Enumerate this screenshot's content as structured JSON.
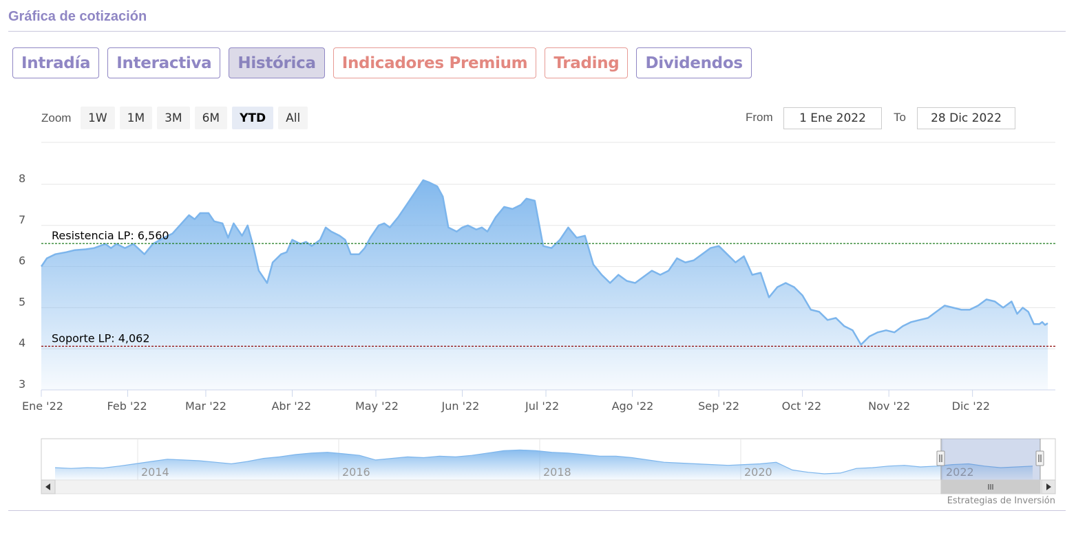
{
  "header": {
    "title": "Gráfica de cotización"
  },
  "tabs": [
    {
      "label": "Intradía",
      "style": "normal"
    },
    {
      "label": "Interactiva",
      "style": "normal"
    },
    {
      "label": "Histórica",
      "style": "active"
    },
    {
      "label": "Indicadores Premium",
      "style": "premium"
    },
    {
      "label": "Trading",
      "style": "premium"
    },
    {
      "label": "Dividendos",
      "style": "normal"
    }
  ],
  "range_selector": {
    "zoom_label": "Zoom",
    "buttons": [
      "1W",
      "1M",
      "3M",
      "6M",
      "YTD",
      "All"
    ],
    "selected": "YTD",
    "from_label": "From",
    "from_value": "1 Ene 2022",
    "to_label": "To",
    "to_value": "28 Dic 2022"
  },
  "credits": "Estrategias de Inversión",
  "colors": {
    "accent": "#8f86c4",
    "premium": "#e38880",
    "series": "#7cb5ec",
    "resistance": "#1a7a1a",
    "support": "#8b0000"
  },
  "chart_data": {
    "type": "area",
    "ylim": [
      3,
      8
    ],
    "yticks": [
      3,
      4,
      5,
      6,
      7,
      8
    ],
    "x_range": [
      "2022-01-01",
      "2022-12-28"
    ],
    "xticks": [
      {
        "date": "2022-01-01",
        "label": "Ene '22"
      },
      {
        "date": "2022-02-01",
        "label": "Feb '22"
      },
      {
        "date": "2022-03-01",
        "label": "Mar '22"
      },
      {
        "date": "2022-04-01",
        "label": "Abr '22"
      },
      {
        "date": "2022-05-01",
        "label": "May '22"
      },
      {
        "date": "2022-06-01",
        "label": "Jun '22"
      },
      {
        "date": "2022-07-01",
        "label": "Jul '22"
      },
      {
        "date": "2022-08-01",
        "label": "Ago '22"
      },
      {
        "date": "2022-09-01",
        "label": "Sep '22"
      },
      {
        "date": "2022-10-01",
        "label": "Oct '22"
      },
      {
        "date": "2022-11-01",
        "label": "Nov '22"
      },
      {
        "date": "2022-12-01",
        "label": "Dic '22"
      }
    ],
    "plot_lines": [
      {
        "label": "Resistencia LP: 6,560",
        "value": 6.56,
        "color": "#1a7a1a"
      },
      {
        "label": "Soporte LP: 4,062",
        "value": 4.062,
        "color": "#8b0000"
      }
    ],
    "series": [
      {
        "points": [
          [
            "2022-01-01",
            6.0
          ],
          [
            "2022-01-03",
            6.2
          ],
          [
            "2022-01-06",
            6.3
          ],
          [
            "2022-01-10",
            6.35
          ],
          [
            "2022-01-13",
            6.4
          ],
          [
            "2022-01-17",
            6.42
          ],
          [
            "2022-01-20",
            6.45
          ],
          [
            "2022-01-24",
            6.55
          ],
          [
            "2022-01-26",
            6.45
          ],
          [
            "2022-01-28",
            6.55
          ],
          [
            "2022-01-31",
            6.45
          ],
          [
            "2022-02-03",
            6.55
          ],
          [
            "2022-02-07",
            6.3
          ],
          [
            "2022-02-10",
            6.55
          ],
          [
            "2022-02-14",
            6.7
          ],
          [
            "2022-02-17",
            6.8
          ],
          [
            "2022-02-21",
            7.1
          ],
          [
            "2022-02-23",
            7.25
          ],
          [
            "2022-02-25",
            7.15
          ],
          [
            "2022-02-27",
            7.3
          ],
          [
            "2022-03-02",
            7.3
          ],
          [
            "2022-03-04",
            7.1
          ],
          [
            "2022-03-07",
            7.05
          ],
          [
            "2022-03-09",
            6.7
          ],
          [
            "2022-03-11",
            7.05
          ],
          [
            "2022-03-14",
            6.75
          ],
          [
            "2022-03-16",
            7.0
          ],
          [
            "2022-03-18",
            6.5
          ],
          [
            "2022-03-20",
            5.9
          ],
          [
            "2022-03-23",
            5.6
          ],
          [
            "2022-03-25",
            6.1
          ],
          [
            "2022-03-28",
            6.3
          ],
          [
            "2022-03-30",
            6.35
          ],
          [
            "2022-04-01",
            6.65
          ],
          [
            "2022-04-04",
            6.55
          ],
          [
            "2022-04-06",
            6.6
          ],
          [
            "2022-04-08",
            6.5
          ],
          [
            "2022-04-11",
            6.65
          ],
          [
            "2022-04-13",
            6.95
          ],
          [
            "2022-04-15",
            6.85
          ],
          [
            "2022-04-18",
            6.75
          ],
          [
            "2022-04-20",
            6.65
          ],
          [
            "2022-04-22",
            6.3
          ],
          [
            "2022-04-25",
            6.3
          ],
          [
            "2022-04-27",
            6.45
          ],
          [
            "2022-04-29",
            6.7
          ],
          [
            "2022-05-02",
            7.0
          ],
          [
            "2022-05-04",
            7.05
          ],
          [
            "2022-05-06",
            6.95
          ],
          [
            "2022-05-09",
            7.2
          ],
          [
            "2022-05-11",
            7.4
          ],
          [
            "2022-05-13",
            7.6
          ],
          [
            "2022-05-16",
            7.9
          ],
          [
            "2022-05-18",
            8.1
          ],
          [
            "2022-05-20",
            8.05
          ],
          [
            "2022-05-23",
            7.95
          ],
          [
            "2022-05-25",
            7.7
          ],
          [
            "2022-05-27",
            6.95
          ],
          [
            "2022-05-30",
            6.85
          ],
          [
            "2022-06-01",
            6.95
          ],
          [
            "2022-06-03",
            7.0
          ],
          [
            "2022-06-06",
            6.9
          ],
          [
            "2022-06-08",
            6.95
          ],
          [
            "2022-06-10",
            6.85
          ],
          [
            "2022-06-13",
            7.2
          ],
          [
            "2022-06-16",
            7.45
          ],
          [
            "2022-06-19",
            7.4
          ],
          [
            "2022-06-22",
            7.5
          ],
          [
            "2022-06-24",
            7.65
          ],
          [
            "2022-06-27",
            7.6
          ],
          [
            "2022-06-30",
            6.5
          ],
          [
            "2022-07-03",
            6.45
          ],
          [
            "2022-07-06",
            6.65
          ],
          [
            "2022-07-09",
            6.95
          ],
          [
            "2022-07-12",
            6.7
          ],
          [
            "2022-07-15",
            6.75
          ],
          [
            "2022-07-18",
            6.05
          ],
          [
            "2022-07-21",
            5.8
          ],
          [
            "2022-07-24",
            5.6
          ],
          [
            "2022-07-27",
            5.8
          ],
          [
            "2022-07-30",
            5.65
          ],
          [
            "2022-08-02",
            5.6
          ],
          [
            "2022-08-05",
            5.75
          ],
          [
            "2022-08-08",
            5.9
          ],
          [
            "2022-08-11",
            5.8
          ],
          [
            "2022-08-14",
            5.9
          ],
          [
            "2022-08-17",
            6.2
          ],
          [
            "2022-08-20",
            6.1
          ],
          [
            "2022-08-23",
            6.15
          ],
          [
            "2022-08-26",
            6.3
          ],
          [
            "2022-08-29",
            6.45
          ],
          [
            "2022-09-01",
            6.5
          ],
          [
            "2022-09-04",
            6.3
          ],
          [
            "2022-09-07",
            6.1
          ],
          [
            "2022-09-10",
            6.25
          ],
          [
            "2022-09-13",
            5.8
          ],
          [
            "2022-09-16",
            5.85
          ],
          [
            "2022-09-19",
            5.25
          ],
          [
            "2022-09-22",
            5.5
          ],
          [
            "2022-09-25",
            5.6
          ],
          [
            "2022-09-28",
            5.5
          ],
          [
            "2022-10-01",
            5.3
          ],
          [
            "2022-10-04",
            4.95
          ],
          [
            "2022-10-07",
            4.9
          ],
          [
            "2022-10-10",
            4.7
          ],
          [
            "2022-10-13",
            4.75
          ],
          [
            "2022-10-16",
            4.55
          ],
          [
            "2022-10-19",
            4.45
          ],
          [
            "2022-10-22",
            4.1
          ],
          [
            "2022-10-25",
            4.3
          ],
          [
            "2022-10-28",
            4.4
          ],
          [
            "2022-10-31",
            4.45
          ],
          [
            "2022-11-03",
            4.4
          ],
          [
            "2022-11-06",
            4.55
          ],
          [
            "2022-11-09",
            4.65
          ],
          [
            "2022-11-12",
            4.7
          ],
          [
            "2022-11-15",
            4.75
          ],
          [
            "2022-11-18",
            4.9
          ],
          [
            "2022-11-21",
            5.05
          ],
          [
            "2022-11-24",
            5.0
          ],
          [
            "2022-11-27",
            4.95
          ],
          [
            "2022-11-30",
            4.95
          ],
          [
            "2022-12-03",
            5.05
          ],
          [
            "2022-12-06",
            5.2
          ],
          [
            "2022-12-09",
            5.15
          ],
          [
            "2022-12-12",
            5.0
          ],
          [
            "2022-12-15",
            5.15
          ],
          [
            "2022-12-17",
            4.85
          ],
          [
            "2022-12-19",
            5.0
          ],
          [
            "2022-12-21",
            4.9
          ],
          [
            "2022-12-23",
            4.6
          ],
          [
            "2022-12-25",
            4.6
          ],
          [
            "2022-12-26",
            4.65
          ],
          [
            "2022-12-27",
            4.58
          ],
          [
            "2022-12-28",
            4.62
          ]
        ]
      }
    ],
    "navigator": {
      "labels": [
        "2014",
        "2016",
        "2018",
        "2020",
        "2022"
      ],
      "values": [
        4.6,
        4.5,
        4.6,
        4.55,
        4.8,
        5.1,
        5.4,
        5.7,
        5.6,
        5.5,
        5.3,
        5.1,
        5.4,
        5.8,
        6.0,
        6.3,
        6.5,
        6.6,
        6.4,
        6.2,
        5.6,
        5.8,
        6.0,
        5.9,
        6.1,
        6.0,
        6.2,
        6.5,
        6.8,
        6.9,
        6.8,
        6.6,
        6.5,
        6.3,
        6.1,
        6.1,
        5.9,
        5.6,
        5.3,
        5.2,
        5.1,
        5.0,
        4.9,
        5.0,
        5.1,
        5.3,
        4.3,
        4.0,
        3.8,
        3.9,
        4.5,
        4.6,
        4.8,
        4.9,
        4.7,
        4.8,
        5.0,
        5.1,
        4.8,
        4.6,
        4.7,
        4.8
      ]
    }
  }
}
